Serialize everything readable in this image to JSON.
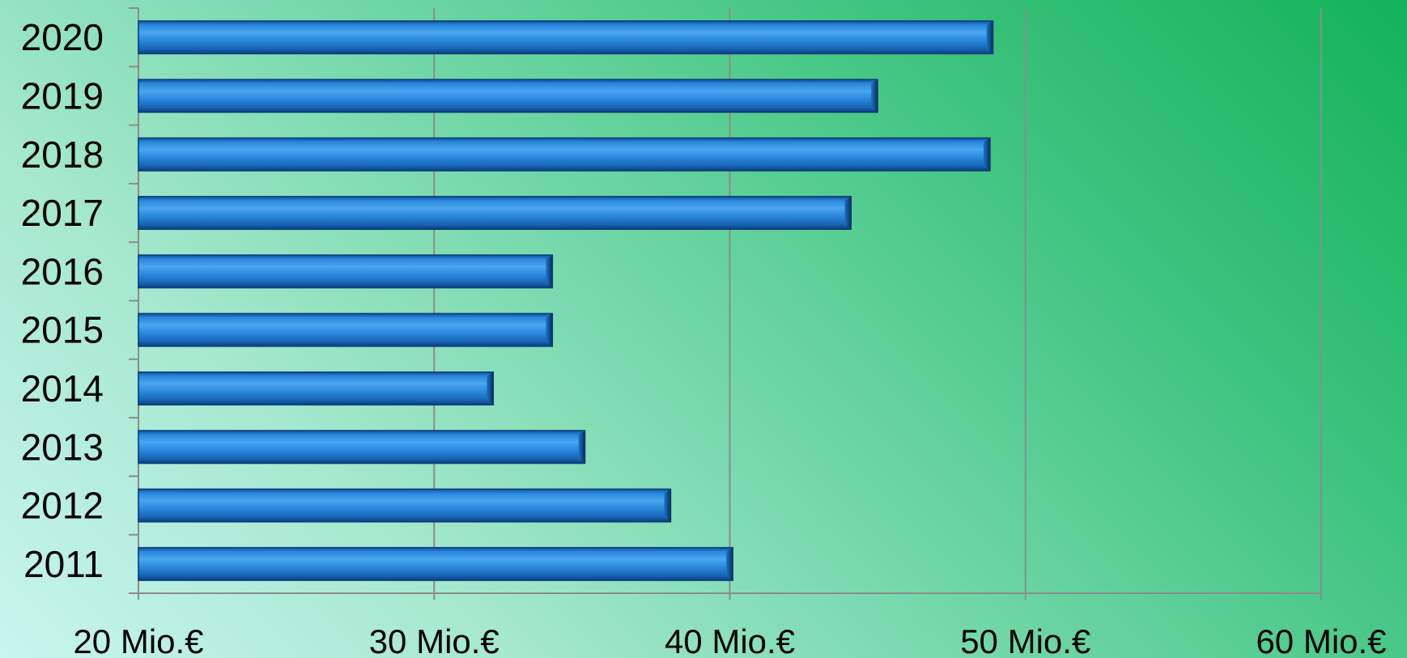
{
  "chart_data": {
    "type": "bar",
    "orientation": "horizontal",
    "title": "",
    "xlabel": "",
    "ylabel": "",
    "categories": [
      "2011",
      "2012",
      "2013",
      "2014",
      "2015",
      "2016",
      "2017",
      "2018",
      "2019",
      "2020"
    ],
    "values": [
      40.1,
      38.0,
      35.1,
      32.0,
      34.0,
      34.0,
      44.1,
      48.8,
      45.0,
      48.9
    ],
    "xlim": [
      20,
      60
    ],
    "x_ticks": [
      20,
      30,
      40,
      50,
      60
    ],
    "x_tick_labels": [
      "20 Mio.€",
      "30 Mio.€",
      "40 Mio.€",
      "50 Mio.€",
      "60 Mio.€"
    ],
    "grid": "vertical",
    "legend": "none",
    "bar_color": "#1c74c9",
    "bar_highlight_color": "#4aa6ef",
    "bar_shadow_color": "#0a3f7a",
    "grid_color": "#8c8c8c"
  }
}
